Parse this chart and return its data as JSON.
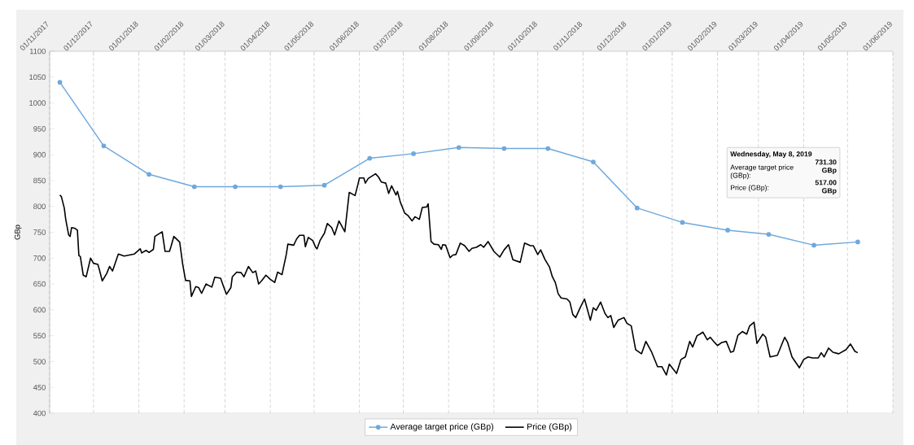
{
  "chart_data": {
    "type": "line",
    "ylabel": "GBp",
    "xlim": [
      "2017-11-01",
      "2019-06-01"
    ],
    "xticks": [
      {
        "value": "2017-11-01",
        "label": "01/11/2017"
      },
      {
        "value": "2017-12-01",
        "label": "01/12/2017"
      },
      {
        "value": "2018-01-01",
        "label": "01/01/2018"
      },
      {
        "value": "2018-02-01",
        "label": "01/02/2018"
      },
      {
        "value": "2018-03-01",
        "label": "01/03/2018"
      },
      {
        "value": "2018-04-01",
        "label": "01/04/2018"
      },
      {
        "value": "2018-05-01",
        "label": "01/05/2018"
      },
      {
        "value": "2018-06-01",
        "label": "01/06/2018"
      },
      {
        "value": "2018-07-01",
        "label": "01/07/2018"
      },
      {
        "value": "2018-08-01",
        "label": "01/08/2018"
      },
      {
        "value": "2018-09-01",
        "label": "01/09/2018"
      },
      {
        "value": "2018-10-01",
        "label": "01/10/2018"
      },
      {
        "value": "2018-11-01",
        "label": "01/11/2018"
      },
      {
        "value": "2018-12-01",
        "label": "01/12/2018"
      },
      {
        "value": "2019-01-01",
        "label": "01/01/2019"
      },
      {
        "value": "2019-02-01",
        "label": "01/02/2019"
      },
      {
        "value": "2019-03-01",
        "label": "01/03/2019"
      },
      {
        "value": "2019-04-01",
        "label": "01/04/2019"
      },
      {
        "value": "2019-05-01",
        "label": "01/05/2019"
      },
      {
        "value": "2019-06-01",
        "label": "01/06/2019"
      }
    ],
    "ylim": [
      400,
      1100
    ],
    "yticks": [
      400,
      450,
      500,
      550,
      600,
      650,
      700,
      750,
      800,
      850,
      900,
      950,
      1000,
      1050,
      1100
    ],
    "grid": "x",
    "legend": "bottom",
    "line_style": "solid",
    "annotations": [
      "Wednesday, May 8, 2019",
      "Average target price (GBp):",
      "731.30 GBp",
      "Price (GBp):",
      "517.00 GBp"
    ],
    "series": [
      {
        "name": "Average target price (GBp)",
        "color": "#6fa8dc",
        "marker": "circle",
        "x": [
          "2017-11-08",
          "2017-12-08",
          "2018-01-08",
          "2018-02-08",
          "2018-03-08",
          "2018-04-08",
          "2018-05-08",
          "2018-06-08",
          "2018-07-08",
          "2018-08-08",
          "2018-09-08",
          "2018-10-08",
          "2018-11-08",
          "2018-12-08",
          "2019-01-08",
          "2019-02-08",
          "2019-03-08",
          "2019-04-08",
          "2019-05-08"
        ],
        "values": [
          1040,
          917,
          862,
          838,
          838,
          838,
          841,
          893,
          902,
          914,
          912,
          912,
          886,
          797,
          769,
          754,
          746,
          725,
          731.3
        ]
      },
      {
        "name": "Price (GBp)",
        "color": "#000000",
        "marker": "none",
        "x": [
          "2017-11-08",
          "2017-11-09",
          "2017-11-11",
          "2017-11-12",
          "2017-11-14",
          "2017-11-15",
          "2017-11-16",
          "2017-11-18",
          "2017-11-20",
          "2017-11-21",
          "2017-11-22",
          "2017-11-24",
          "2017-11-26",
          "2017-11-29",
          "2017-12-01",
          "2017-12-04",
          "2017-12-05",
          "2017-12-07",
          "2017-12-10",
          "2017-12-12",
          "2017-12-14",
          "2017-12-18",
          "2017-12-22",
          "2017-12-29",
          "2018-01-02",
          "2018-01-03",
          "2018-01-06",
          "2018-01-08",
          "2018-01-11",
          "2018-01-12",
          "2018-01-17",
          "2018-01-19",
          "2018-01-22",
          "2018-01-23",
          "2018-01-25",
          "2018-01-29",
          "2018-01-31",
          "2018-02-02",
          "2018-02-05",
          "2018-02-06",
          "2018-02-09",
          "2018-02-11",
          "2018-02-13",
          "2018-02-16",
          "2018-02-20",
          "2018-02-22",
          "2018-02-26",
          "2018-02-28",
          "2018-03-02",
          "2018-03-05",
          "2018-03-06",
          "2018-03-09",
          "2018-03-12",
          "2018-03-14",
          "2018-03-17",
          "2018-03-20",
          "2018-03-22",
          "2018-03-24",
          "2018-03-26",
          "2018-03-29",
          "2018-04-01",
          "2018-04-04",
          "2018-04-06",
          "2018-04-09",
          "2018-04-12",
          "2018-04-13",
          "2018-04-17",
          "2018-04-19",
          "2018-04-21",
          "2018-04-24",
          "2018-04-25",
          "2018-04-27",
          "2018-04-30",
          "2018-05-02",
          "2018-05-03",
          "2018-05-05",
          "2018-05-08",
          "2018-05-10",
          "2018-05-13",
          "2018-05-15",
          "2018-05-18",
          "2018-05-22",
          "2018-05-25",
          "2018-05-29",
          "2018-05-31",
          "2018-06-01",
          "2018-06-04",
          "2018-06-05",
          "2018-06-07",
          "2018-06-12",
          "2018-06-14",
          "2018-06-16",
          "2018-06-19",
          "2018-06-21",
          "2018-06-23",
          "2018-06-26",
          "2018-06-27",
          "2018-06-29",
          "2018-07-02",
          "2018-07-04",
          "2018-07-07",
          "2018-07-09",
          "2018-07-12",
          "2018-07-14",
          "2018-07-17",
          "2018-07-18",
          "2018-07-20",
          "2018-07-22",
          "2018-07-25",
          "2018-07-27",
          "2018-07-28",
          "2018-07-30",
          "2018-08-02",
          "2018-08-04",
          "2018-08-06",
          "2018-08-09",
          "2018-08-12",
          "2018-08-15",
          "2018-08-17",
          "2018-08-20",
          "2018-08-23",
          "2018-08-25",
          "2018-08-28",
          "2018-09-01",
          "2018-09-05",
          "2018-09-08",
          "2018-09-11",
          "2018-09-14",
          "2018-09-19",
          "2018-09-22",
          "2018-09-26",
          "2018-09-28",
          "2018-10-01",
          "2018-10-03",
          "2018-10-06",
          "2018-10-09",
          "2018-10-11",
          "2018-10-13",
          "2018-10-15",
          "2018-10-17",
          "2018-10-21",
          "2018-10-23",
          "2018-10-25",
          "2018-10-27",
          "2018-10-30",
          "2018-11-02",
          "2018-11-06",
          "2018-11-08",
          "2018-11-10",
          "2018-11-13",
          "2018-11-16",
          "2018-11-18",
          "2018-11-20",
          "2018-11-22",
          "2018-11-25",
          "2018-11-29",
          "2018-12-01",
          "2018-12-04",
          "2018-12-07",
          "2018-12-11",
          "2018-12-14",
          "2018-12-18",
          "2018-12-22",
          "2018-12-25",
          "2018-12-28",
          "2018-12-30",
          "2019-01-04",
          "2019-01-07",
          "2019-01-10",
          "2019-01-13",
          "2019-01-15",
          "2019-01-18",
          "2019-01-20",
          "2019-01-22",
          "2019-01-25",
          "2019-01-27",
          "2019-01-30",
          "2019-02-01",
          "2019-02-04",
          "2019-02-07",
          "2019-02-10",
          "2019-02-12",
          "2019-02-15",
          "2019-02-18",
          "2019-02-21",
          "2019-02-23",
          "2019-02-26",
          "2019-02-28",
          "2019-03-04",
          "2019-03-06",
          "2019-03-09",
          "2019-03-14",
          "2019-03-19",
          "2019-03-21",
          "2019-03-24",
          "2019-03-29",
          "2019-04-01",
          "2019-04-04",
          "2019-04-07",
          "2019-04-11",
          "2019-04-13",
          "2019-04-15",
          "2019-04-18",
          "2019-04-21",
          "2019-04-25",
          "2019-04-30",
          "2019-05-03",
          "2019-05-06",
          "2019-05-08"
        ],
        "values": [
          822,
          819,
          797,
          775,
          745,
          742,
          759,
          758,
          754,
          705,
          703,
          667,
          664,
          700,
          690,
          688,
          678,
          656,
          670,
          684,
          675,
          708,
          704,
          708,
          718,
          710,
          715,
          711,
          717,
          742,
          751,
          713,
          713,
          722,
          742,
          731,
          689,
          657,
          656,
          626,
          645,
          643,
          632,
          650,
          644,
          663,
          661,
          645,
          630,
          643,
          664,
          673,
          672,
          664,
          684,
          672,
          675,
          650,
          656,
          667,
          659,
          653,
          673,
          668,
          708,
          727,
          725,
          737,
          744,
          744,
          722,
          740,
          734,
          721,
          718,
          734,
          748,
          767,
          759,
          745,
          772,
          751,
          827,
          821,
          843,
          855,
          855,
          845,
          854,
          863,
          857,
          847,
          845,
          825,
          840,
          822,
          829,
          808,
          787,
          783,
          772,
          780,
          775,
          798,
          799,
          805,
          732,
          727,
          726,
          717,
          726,
          725,
          701,
          706,
          707,
          729,
          724,
          713,
          719,
          721,
          726,
          721,
          732,
          713,
          702,
          716,
          726,
          697,
          692,
          729,
          724,
          724,
          707,
          716,
          697,
          683,
          664,
          653,
          631,
          623,
          621,
          615,
          591,
          585,
          604,
          621,
          580,
          604,
          599,
          615,
          593,
          585,
          589,
          566,
          580,
          585,
          574,
          569,
          523,
          515,
          539,
          518,
          490,
          490,
          474,
          495,
          477,
          504,
          509,
          539,
          528,
          550,
          553,
          557,
          542,
          547,
          537,
          531,
          537,
          539,
          518,
          520,
          551,
          558,
          553,
          569,
          576,
          535,
          553,
          547,
          509,
          512,
          547,
          537,
          509,
          488,
          504,
          509,
          507,
          507,
          517,
          509,
          526,
          518,
          515,
          523,
          534,
          520,
          517
        ]
      }
    ]
  }
}
